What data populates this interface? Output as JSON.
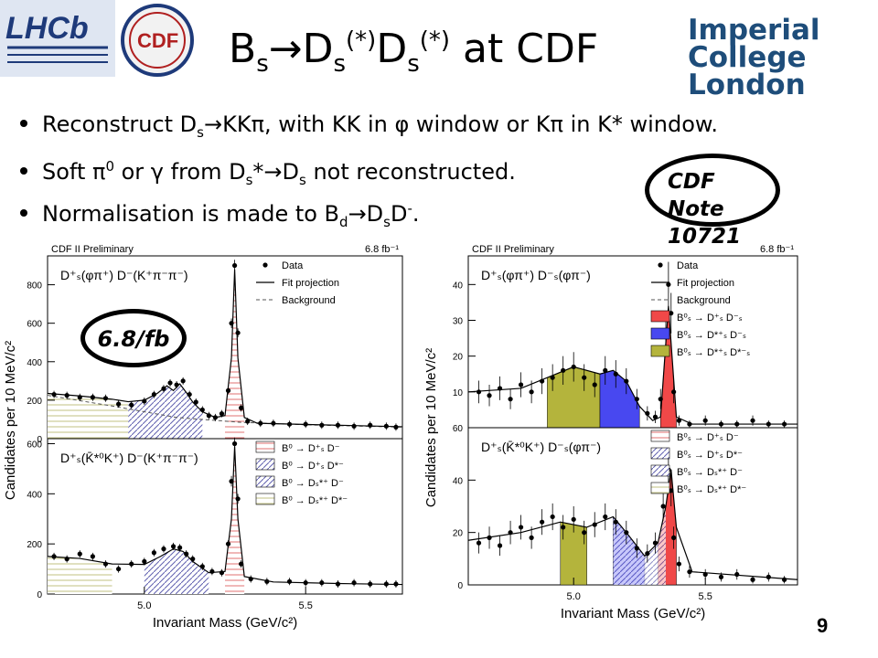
{
  "slide": {
    "title": {
      "b": "B",
      "s1": "s",
      "arrow_d": "→D",
      "s2": "s",
      "sup1": "(*)",
      "d": "D",
      "s3": "s",
      "sup2": "(*)",
      "tail": " at CDF"
    },
    "bullets": [
      {
        "parts": [
          "Reconstruct D",
          "s",
          "→KKπ, with KK in φ window or Kπ in K* window."
        ]
      },
      {
        "parts": [
          "Soft π",
          "0",
          " or γ from D",
          "s",
          "*→D",
          "s",
          " not reconstructed."
        ]
      },
      {
        "parts": [
          "Normalisation is made to B",
          "d",
          "→D",
          "s",
          "D",
          "-",
          "."
        ]
      }
    ],
    "note_oval": {
      "line1": "CDF Note",
      "line2": "10721"
    },
    "lumi_oval": "6.8/fb",
    "page_number": "9",
    "logos": {
      "lhcb": "LHCb",
      "cdf": "CDF",
      "imperial_line1": "Imperial College",
      "imperial_line2": "London"
    }
  },
  "colors": {
    "red_fill": "#f04848",
    "blue_fill": "#4848f0",
    "olive_fill": "#b4b43c",
    "hatch_red": "#e07070",
    "hatch_blue": "#6060b0",
    "hatch_olive": "#c0c080"
  },
  "chart_data": [
    {
      "type": "line",
      "header_left": "CDF II Preliminary",
      "header_right": "6.8 fb⁻¹",
      "decay_label": "D⁺ₛ(φπ⁺) D⁻(K⁺π⁻π⁻)",
      "xlabel": "",
      "ylabel": "Candidates per 10 MeV/c²",
      "xlim": [
        4.7,
        5.8
      ],
      "ylim": [
        0,
        950
      ],
      "yticks": [
        0,
        200,
        400,
        600,
        800
      ],
      "legend": [
        "Data",
        "Fit projection",
        "Background"
      ],
      "series": [
        {
          "name": "Data",
          "x": [
            4.72,
            4.76,
            4.8,
            4.84,
            4.88,
            4.92,
            4.96,
            5.0,
            5.03,
            5.06,
            5.08,
            5.1,
            5.12,
            5.14,
            5.16,
            5.18,
            5.2,
            5.22,
            5.24,
            5.26,
            5.27,
            5.28,
            5.29,
            5.3,
            5.32,
            5.36,
            5.4,
            5.45,
            5.5,
            5.55,
            5.6,
            5.65,
            5.7,
            5.75,
            5.78
          ],
          "y": [
            230,
            225,
            215,
            215,
            210,
            180,
            175,
            195,
            230,
            260,
            290,
            280,
            300,
            230,
            190,
            150,
            120,
            110,
            130,
            250,
            600,
            900,
            550,
            160,
            90,
            80,
            80,
            75,
            75,
            70,
            70,
            65,
            70,
            65,
            60
          ]
        },
        {
          "name": "Fit projection",
          "x": [
            4.7,
            4.8,
            4.9,
            4.95,
            5.0,
            5.04,
            5.07,
            5.09,
            5.11,
            5.13,
            5.15,
            5.18,
            5.22,
            5.25,
            5.27,
            5.28,
            5.29,
            5.31,
            5.35,
            5.45,
            5.55,
            5.65,
            5.8
          ],
          "y": [
            235,
            222,
            205,
            192,
            200,
            235,
            275,
            250,
            285,
            240,
            190,
            140,
            110,
            120,
            420,
            880,
            420,
            110,
            80,
            76,
            72,
            68,
            62
          ]
        },
        {
          "name": "Background",
          "x": [
            4.7,
            4.9,
            5.1,
            5.3,
            5.5,
            5.8
          ],
          "y": [
            225,
            170,
            110,
            85,
            72,
            60
          ]
        }
      ]
    },
    {
      "type": "line",
      "decay_label": "D⁺ₛ(K̄*⁰K⁺) D⁻(K⁺π⁻π⁻)",
      "xlabel": "Invariant Mass (GeV/c²)",
      "ylabel": "",
      "xlim": [
        4.7,
        5.8
      ],
      "ylim": [
        0,
        620
      ],
      "xticks": [
        5.0,
        5.5
      ],
      "yticks": [
        0,
        200,
        400,
        600
      ],
      "legend": [
        "B⁰ → D⁺ₛ D⁻",
        "B⁰ → D⁺ₛ D*⁻",
        "B⁰ → Dₛ*⁺ D⁻",
        "B⁰ → Dₛ*⁺ D*⁻"
      ],
      "series": [
        {
          "name": "Data",
          "x": [
            4.72,
            4.76,
            4.8,
            4.84,
            4.88,
            4.92,
            4.96,
            5.0,
            5.03,
            5.06,
            5.09,
            5.11,
            5.13,
            5.15,
            5.18,
            5.21,
            5.24,
            5.26,
            5.27,
            5.28,
            5.29,
            5.3,
            5.33,
            5.38,
            5.45,
            5.5,
            5.55,
            5.6,
            5.65,
            5.7,
            5.75,
            5.78
          ],
          "y": [
            150,
            140,
            160,
            150,
            120,
            100,
            120,
            130,
            165,
            180,
            190,
            185,
            160,
            140,
            110,
            90,
            85,
            200,
            450,
            600,
            380,
            120,
            60,
            50,
            50,
            45,
            45,
            40,
            45,
            40,
            40,
            40
          ]
        },
        {
          "name": "Fit projection",
          "x": [
            4.7,
            4.8,
            4.9,
            5.0,
            5.05,
            5.09,
            5.12,
            5.15,
            5.2,
            5.25,
            5.27,
            5.28,
            5.29,
            5.31,
            5.4,
            5.6,
            5.8
          ],
          "y": [
            150,
            142,
            120,
            118,
            150,
            180,
            170,
            130,
            85,
            90,
            300,
            590,
            300,
            70,
            48,
            42,
            38
          ]
        }
      ]
    },
    {
      "type": "area",
      "header_left": "CDF II Preliminary",
      "header_right": "6.8 fb⁻¹",
      "decay_label": "D⁺ₛ(φπ⁺) D⁻ₛ(φπ⁻)",
      "xlabel": "",
      "ylabel": "Candidates per 10 MeV/c²",
      "xlim": [
        4.6,
        5.85
      ],
      "ylim": [
        0,
        48
      ],
      "yticks": [
        10,
        20,
        30,
        40
      ],
      "legend": [
        "Data",
        "Fit projection",
        "Background",
        "B⁰ₛ → D⁺ₛ D⁻ₛ",
        "B⁰ₛ → D*⁺ₛ D⁻ₛ",
        "B⁰ₛ → D*⁺ₛ D*⁻ₛ"
      ],
      "series": [
        {
          "name": "Data",
          "x": [
            4.64,
            4.68,
            4.72,
            4.76,
            4.8,
            4.84,
            4.88,
            4.92,
            4.96,
            5.0,
            5.04,
            5.08,
            5.12,
            5.16,
            5.2,
            5.24,
            5.28,
            5.31,
            5.33,
            5.35,
            5.36,
            5.37,
            5.38,
            5.4,
            5.44,
            5.5,
            5.56,
            5.62,
            5.68,
            5.74,
            5.8
          ],
          "y": [
            10,
            9,
            11,
            8,
            12,
            10,
            13,
            14,
            16,
            17,
            14,
            12,
            16,
            15,
            13,
            8,
            4,
            3,
            8,
            26,
            40,
            32,
            10,
            2,
            1,
            2,
            1,
            1,
            2,
            1,
            1
          ]
        },
        {
          "name": "Fit projection",
          "x": [
            4.6,
            4.8,
            4.9,
            5.0,
            5.1,
            5.15,
            5.2,
            5.25,
            5.3,
            5.33,
            5.36,
            5.39,
            5.45,
            5.85
          ],
          "y": [
            10,
            11,
            14,
            17,
            15,
            16,
            13,
            6,
            2,
            3,
            34,
            3,
            1,
            1
          ]
        }
      ]
    },
    {
      "type": "area",
      "decay_label": "D⁺ₛ(K̄*⁰K⁺) D⁻ₛ(φπ⁻)",
      "xlabel": "Invariant Mass (GeV/c²)",
      "ylabel": "",
      "xlim": [
        4.6,
        5.85
      ],
      "ylim": [
        0,
        60
      ],
      "xticks": [
        5.0,
        5.5
      ],
      "yticks": [
        0,
        20,
        40,
        60
      ],
      "legend": [
        "B⁰ₛ → D⁺ₛ D⁻",
        "B⁰ₛ → D⁺ₛ D*⁻",
        "B⁰ₛ → Dₛ*⁺ D⁻",
        "B⁰ₛ → Dₛ*⁺ D*⁻"
      ],
      "series": [
        {
          "name": "Data",
          "x": [
            4.64,
            4.68,
            4.72,
            4.76,
            4.8,
            4.84,
            4.88,
            4.92,
            4.96,
            5.0,
            5.04,
            5.08,
            5.12,
            5.16,
            5.2,
            5.24,
            5.28,
            5.31,
            5.34,
            5.36,
            5.37,
            5.38,
            5.4,
            5.44,
            5.5,
            5.56,
            5.62,
            5.68,
            5.74,
            5.8
          ],
          "y": [
            16,
            18,
            15,
            20,
            22,
            18,
            24,
            26,
            22,
            25,
            20,
            23,
            26,
            24,
            20,
            14,
            12,
            16,
            30,
            44,
            36,
            18,
            8,
            5,
            4,
            3,
            4,
            2,
            3,
            2
          ]
        },
        {
          "name": "Fit projection",
          "x": [
            4.6,
            4.8,
            4.95,
            5.05,
            5.15,
            5.2,
            5.27,
            5.32,
            5.35,
            5.37,
            5.39,
            5.45,
            5.85
          ],
          "y": [
            17,
            20,
            24,
            22,
            26,
            20,
            11,
            16,
            30,
            44,
            22,
            5,
            2
          ]
        }
      ]
    }
  ]
}
